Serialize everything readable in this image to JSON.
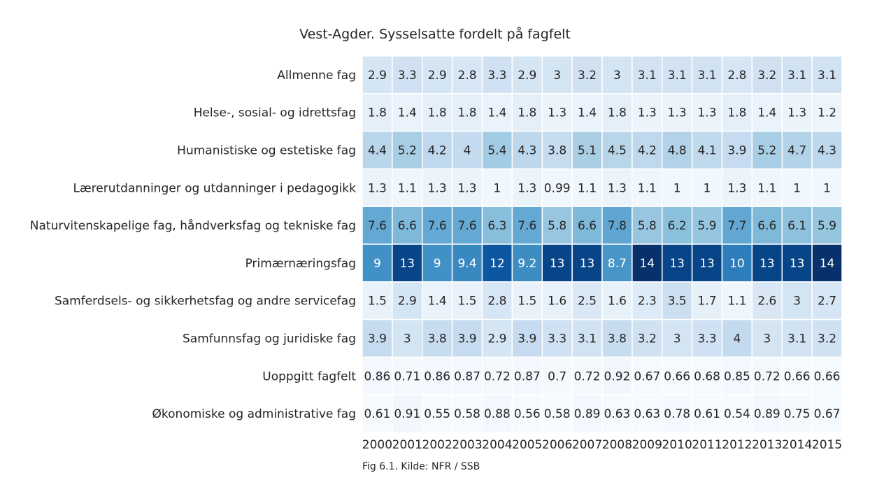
{
  "chart_data": {
    "type": "heatmap",
    "title": "Vest-Agder. Sysselsatte fordelt på fagfelt",
    "caption": "Fig 6.1. Kilde: NFR / SSB",
    "xlabel": "",
    "ylabel": "",
    "colormap": "Blues",
    "grid": true,
    "color_range": [
      0.54,
      14
    ],
    "x": [
      "2000",
      "2001",
      "2002",
      "2003",
      "2004",
      "2005",
      "2006",
      "2007",
      "2008",
      "2009",
      "2010",
      "2011",
      "2012",
      "2013",
      "2014",
      "2015"
    ],
    "rows": [
      "Allmenne fag",
      "Helse-, sosial- og idrettsfag",
      "Humanistiske og estetiske fag",
      "Lærerutdanninger og utdanninger i pedagogikk",
      "Naturvitenskapelige fag, håndverksfag og tekniske fag",
      "Primærnæringsfag",
      "Samferdsels- og sikkerhetsfag og andre servicefag",
      "Samfunnsfag og juridiske fag",
      "Uoppgitt fagfelt",
      "Økonomiske og administrative fag"
    ],
    "values": [
      [
        "2.9",
        "3.3",
        "2.9",
        "2.8",
        "3.3",
        "2.9",
        "3",
        "3.2",
        "3",
        "3.1",
        "3.1",
        "3.1",
        "2.8",
        "3.2",
        "3.1",
        "3.1"
      ],
      [
        "1.8",
        "1.4",
        "1.8",
        "1.8",
        "1.4",
        "1.8",
        "1.3",
        "1.4",
        "1.8",
        "1.3",
        "1.3",
        "1.3",
        "1.8",
        "1.4",
        "1.3",
        "1.2"
      ],
      [
        "4.4",
        "5.2",
        "4.2",
        "4",
        "5.4",
        "4.3",
        "3.8",
        "5.1",
        "4.5",
        "4.2",
        "4.8",
        "4.1",
        "3.9",
        "5.2",
        "4.7",
        "4.3"
      ],
      [
        "1.3",
        "1.1",
        "1.3",
        "1.3",
        "1",
        "1.3",
        "0.99",
        "1.1",
        "1.3",
        "1.1",
        "1",
        "1",
        "1.3",
        "1.1",
        "1",
        "1"
      ],
      [
        "7.6",
        "6.6",
        "7.6",
        "7.6",
        "6.3",
        "7.6",
        "5.8",
        "6.6",
        "7.8",
        "5.8",
        "6.2",
        "5.9",
        "7.7",
        "6.6",
        "6.1",
        "5.9"
      ],
      [
        "9",
        "13",
        "9",
        "9.4",
        "12",
        "9.2",
        "13",
        "13",
        "8.7",
        "14",
        "13",
        "13",
        "10",
        "13",
        "13",
        "14"
      ],
      [
        "1.5",
        "2.9",
        "1.4",
        "1.5",
        "2.8",
        "1.5",
        "1.6",
        "2.5",
        "1.6",
        "2.3",
        "3.5",
        "1.7",
        "1.1",
        "2.6",
        "3",
        "2.7"
      ],
      [
        "3.9",
        "3",
        "3.8",
        "3.9",
        "2.9",
        "3.9",
        "3.3",
        "3.1",
        "3.8",
        "3.2",
        "3",
        "3.3",
        "4",
        "3",
        "3.1",
        "3.2"
      ],
      [
        "0.86",
        "0.71",
        "0.86",
        "0.87",
        "0.72",
        "0.87",
        "0.7",
        "0.72",
        "0.92",
        "0.67",
        "0.66",
        "0.68",
        "0.85",
        "0.72",
        "0.66",
        "0.66"
      ],
      [
        "0.61",
        "0.91",
        "0.55",
        "0.58",
        "0.88",
        "0.56",
        "0.58",
        "0.89",
        "0.63",
        "0.63",
        "0.78",
        "0.61",
        "0.54",
        "0.89",
        "0.75",
        "0.67"
      ]
    ]
  }
}
